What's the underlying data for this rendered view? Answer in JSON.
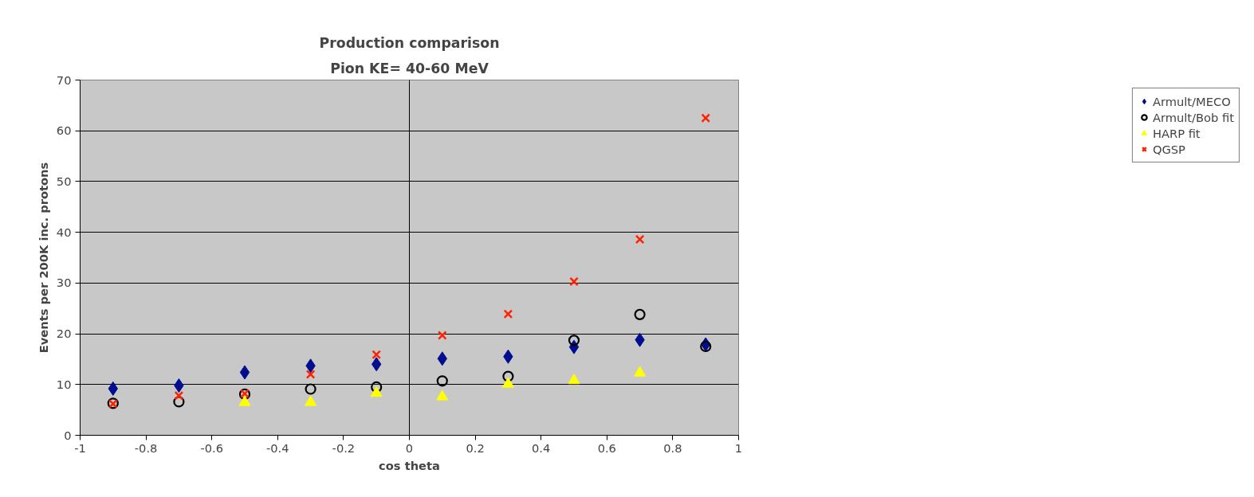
{
  "chart_data": {
    "type": "scatter",
    "title": "Production comparison",
    "subtitle": "Pion KE= 40-60 MeV",
    "xlabel": "cos theta",
    "ylabel": "Events per 200K inc. protons",
    "x": [
      -0.9,
      -0.7,
      -0.5,
      -0.3,
      -0.1,
      0.1,
      0.3,
      0.5,
      0.7,
      0.9
    ],
    "series": [
      {
        "name": "Armult/MECO",
        "color": "#000d8f",
        "marker": "diamond",
        "values": [
          9.2,
          9.8,
          12.4,
          13.7,
          14.0,
          15.1,
          15.5,
          17.4,
          18.8,
          17.9
        ]
      },
      {
        "name": "Armult/Bob fit",
        "color": "#000000",
        "marker": "circle",
        "values": [
          6.3,
          6.6,
          8.1,
          9.1,
          9.5,
          10.7,
          11.6,
          18.7,
          23.8,
          17.5
        ]
      },
      {
        "name": "HARP fit",
        "color": "#ffff00",
        "marker": "triangle",
        "values": [
          null,
          null,
          6.5,
          6.5,
          8.3,
          7.6,
          10.1,
          10.8,
          12.3,
          null
        ]
      },
      {
        "name": "QGSP",
        "color": "#ff2200",
        "marker": "cross",
        "values": [
          6.2,
          7.8,
          8.2,
          12.0,
          15.9,
          19.7,
          23.9,
          30.3,
          38.6,
          62.5
        ]
      }
    ],
    "xlim": [
      -1,
      1
    ],
    "xticks": [
      -1,
      -0.8,
      -0.6,
      -0.4,
      -0.2,
      0,
      0.2,
      0.4,
      0.6,
      0.8,
      1
    ],
    "ylim": [
      0,
      70
    ],
    "yticks": [
      0,
      10,
      20,
      30,
      40,
      50,
      60,
      70
    ],
    "ref_lines": [
      {
        "axis": "x",
        "value": 0,
        "color": "#000000"
      }
    ],
    "grid": "y",
    "legend": "right"
  }
}
